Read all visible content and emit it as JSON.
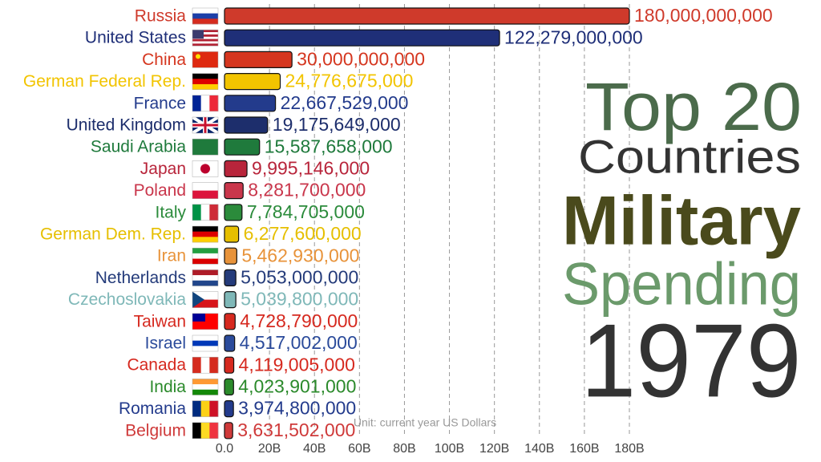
{
  "chart_data": {
    "type": "bar",
    "orientation": "horizontal",
    "title_lines": [
      "Top 20",
      "Countries",
      "Military",
      "Spending"
    ],
    "year": "1979",
    "x_label": "Unit: current year US Dollars",
    "categories": [
      "Russia",
      "United States",
      "China",
      "German Federal Rep.",
      "France",
      "United Kingdom",
      "Saudi Arabia",
      "Japan",
      "Poland",
      "Italy",
      "German Dem. Rep.",
      "Iran",
      "Netherlands",
      "Czechoslovakia",
      "Taiwan",
      "Israel",
      "Canada",
      "India",
      "Romania",
      "Belgium"
    ],
    "values": [
      180000000000,
      122279000000,
      30000000000,
      24776675000,
      22667529000,
      19175649000,
      15587658000,
      9995146000,
      8281700000,
      7784705000,
      6277600000,
      5462930000,
      5053000000,
      5039800000,
      4728790000,
      4517002000,
      4119005000,
      4023901000,
      3974800000,
      3631502000
    ],
    "value_labels": [
      "180,000,000,000",
      "122,279,000,000",
      "30,000,000,000",
      "24,776,675,000",
      "22,667,529,000",
      "19,175,649,000",
      "15,587,658,000",
      "9,995,146,000",
      "8,281,700,000",
      "7,784,705,000",
      "6,277,600,000",
      "5,462,930,000",
      "5,053,000,000",
      "5,039,800,000",
      "4,728,790,000",
      "4,517,002,000",
      "4,119,005,000",
      "4,023,901,000",
      "3,974,800,000",
      "3,631,502,000"
    ],
    "colors": [
      "#cf3a2b",
      "#1f2f78",
      "#d5361f",
      "#f2c400",
      "#233b8c",
      "#1d2e6c",
      "#1f7a3c",
      "#b8253b",
      "#c9364b",
      "#2b8b3b",
      "#e6bf00",
      "#e8933a",
      "#243b7a",
      "#7fb8b8",
      "#d6291f",
      "#2b4b9b",
      "#d6291f",
      "#2b8a2b",
      "#233b8c",
      "#cf3a3a"
    ],
    "xlim": [
      0,
      180000000000
    ],
    "xticks": [
      {
        "value": 0,
        "label": "0.0"
      },
      {
        "value": 20000000000,
        "label": "20B"
      },
      {
        "value": 40000000000,
        "label": "40B"
      },
      {
        "value": 60000000000,
        "label": "60B"
      },
      {
        "value": 80000000000,
        "label": "80B"
      },
      {
        "value": 100000000000,
        "label": "100B"
      },
      {
        "value": 120000000000,
        "label": "120B"
      },
      {
        "value": 140000000000,
        "label": "140B"
      },
      {
        "value": 160000000000,
        "label": "160B"
      },
      {
        "value": 180000000000,
        "label": "180B"
      }
    ],
    "grid": true
  }
}
